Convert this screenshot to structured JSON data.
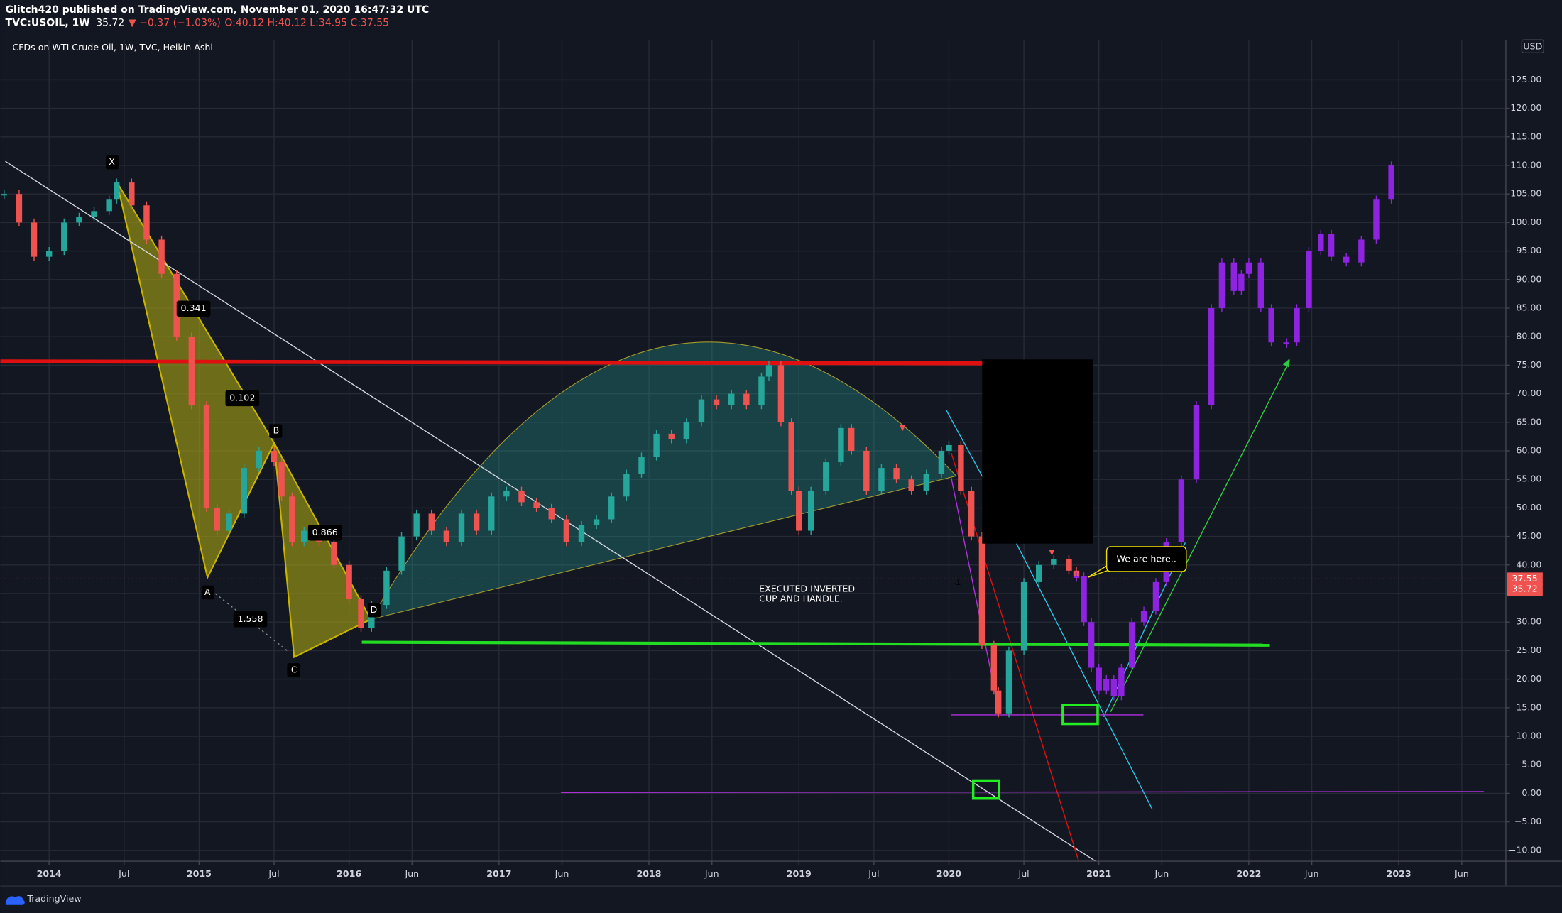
{
  "header": {
    "publisher": "Glitch420 published on TradingView.com, November 01, 2020 16:47:32 UTC",
    "symbol": "TVC:USOIL, 1W",
    "last": "35.72",
    "change": "▼ −0.37 (−1.03%)",
    "ohlc": "O:40.12 H:40.12 L:34.95 C:37.55"
  },
  "footer": {
    "brand": "TradingView"
  },
  "chart_data": {
    "type": "candlestick",
    "title": "CFDs on WTI Crude Oil, 1W, TVC, Heikin Ashi",
    "currency": "USD",
    "xlim": [
      2013.675,
      2023.714
    ],
    "ylim": [
      -11.9,
      132
    ],
    "xticks": [
      2014,
      {
        "value": 2014.5,
        "label": "Jul"
      },
      2015,
      {
        "value": 2015.5,
        "label": "Jul"
      },
      2016,
      {
        "value": 2016.42,
        "label": "Jun"
      },
      2017,
      {
        "value": 2017.42,
        "label": "Jun"
      },
      2018,
      {
        "value": 2018.42,
        "label": "Jun"
      },
      2019,
      {
        "value": 2019.5,
        "label": "Jul"
      },
      2020,
      {
        "value": 2020.5,
        "label": "Jul"
      },
      2021,
      {
        "value": 2021.42,
        "label": "Jun"
      },
      2022,
      {
        "value": 2022.42,
        "label": "Jun"
      },
      2023,
      {
        "value": 2023.42,
        "label": "Jun"
      }
    ],
    "yticks": [
      {
        "value": -10,
        "label": "−10.00"
      },
      {
        "value": -5,
        "label": "−5.00"
      },
      {
        "value": 0,
        "label": "0.00"
      },
      {
        "value": 5,
        "label": "5.00"
      },
      {
        "value": 10,
        "label": "10.00"
      },
      {
        "value": 15,
        "label": "15.00"
      },
      {
        "value": 20,
        "label": "20.00"
      },
      {
        "value": 25,
        "label": "25.00"
      },
      {
        "value": 30,
        "label": "30.00"
      },
      {
        "value": 35,
        "label": "35.00"
      },
      {
        "value": 40,
        "label": "40.00"
      },
      {
        "value": 45,
        "label": "45.00"
      },
      {
        "value": 50,
        "label": "50.00"
      },
      {
        "value": 55,
        "label": "55.00"
      },
      {
        "value": 60,
        "label": "60.00"
      },
      {
        "value": 65,
        "label": "65.00"
      },
      {
        "value": 70,
        "label": "70.00"
      },
      {
        "value": 75,
        "label": "75.00"
      },
      {
        "value": 80,
        "label": "80.00"
      },
      {
        "value": 85,
        "label": "85.00"
      },
      {
        "value": 90,
        "label": "90.00"
      },
      {
        "value": 95,
        "label": "95.00"
      },
      {
        "value": 100,
        "label": "100.00"
      },
      {
        "value": 105,
        "label": "105.00"
      },
      {
        "value": 110,
        "label": "110.00"
      },
      {
        "value": 115,
        "label": "115.00"
      },
      {
        "value": 120,
        "label": "120.00"
      },
      {
        "value": 125,
        "label": "125.00"
      }
    ],
    "grid": true,
    "series": [
      {
        "name": "WTI",
        "up_color": "#26a69a",
        "down_color": "#ef5350",
        "x": [
          2013.7,
          2013.8,
          2013.9,
          2014.0,
          2014.1,
          2014.2,
          2014.3,
          2014.4,
          2014.45,
          2014.55,
          2014.65,
          2014.75,
          2014.85,
          2014.95,
          2015.05,
          2015.12,
          2015.2,
          2015.3,
          2015.4,
          2015.5,
          2015.55,
          2015.62,
          2015.7,
          2015.8,
          2015.9,
          2016.0,
          2016.08,
          2016.15,
          2016.25,
          2016.35,
          2016.45,
          2016.55,
          2016.65,
          2016.75,
          2016.85,
          2016.95,
          2017.05,
          2017.15,
          2017.25,
          2017.35,
          2017.45,
          2017.55,
          2017.65,
          2017.75,
          2017.85,
          2017.95,
          2018.05,
          2018.15,
          2018.25,
          2018.35,
          2018.45,
          2018.55,
          2018.65,
          2018.75,
          2018.8,
          2018.88,
          2018.95,
          2019.0,
          2019.08,
          2019.18,
          2019.28,
          2019.35,
          2019.45,
          2019.55,
          2019.65,
          2019.75,
          2019.85,
          2019.95,
          2020.0,
          2020.08,
          2020.15,
          2020.22,
          2020.3,
          2020.33,
          2020.4,
          2020.5,
          2020.6,
          2020.7,
          2020.8,
          2020.85
        ],
        "values": [
          105,
          100,
          94,
          95,
          100,
          101,
          102,
          104,
          107,
          103,
          97,
          91,
          80,
          68,
          50,
          46,
          49,
          57,
          60,
          58,
          52,
          44,
          46,
          44,
          40,
          34,
          29,
          33,
          39,
          45,
          49,
          46,
          44,
          49,
          46,
          52,
          53,
          51,
          50,
          48,
          44,
          47,
          48,
          52,
          56,
          59,
          63,
          62,
          65,
          69,
          68,
          70,
          68,
          73,
          75,
          65,
          53,
          46,
          53,
          58,
          64,
          60,
          53,
          57,
          55,
          53,
          56,
          60,
          61,
          53,
          45,
          26,
          18,
          14,
          25,
          37,
          40,
          41,
          39,
          38
        ]
      },
      {
        "name": "Projection",
        "color": "#8e24e0",
        "x": [
          2020.85,
          2020.9,
          2020.95,
          2021.0,
          2021.05,
          2021.1,
          2021.15,
          2021.22,
          2021.3,
          2021.38,
          2021.45,
          2021.55,
          2021.65,
          2021.75,
          2021.82,
          2021.9,
          2021.95,
          2022.0,
          2022.08,
          2022.15,
          2022.25,
          2022.32,
          2022.4,
          2022.48,
          2022.55,
          2022.65,
          2022.75,
          2022.85,
          2022.95
        ],
        "values": [
          38,
          30,
          22,
          18,
          20,
          17,
          22,
          30,
          32,
          37,
          44,
          55,
          68,
          85,
          93,
          88,
          91,
          93,
          85,
          79,
          79,
          85,
          95,
          98,
          94,
          93,
          97,
          104,
          110
        ]
      }
    ],
    "price_labels": [
      {
        "value": 37.55,
        "color": "#ef5350"
      },
      {
        "value": 35.72,
        "color": "#ef5350"
      }
    ]
  },
  "annotations": {
    "x": "X",
    "a": "A",
    "b": "B",
    "c": "C",
    "d": "D",
    "r1": "0.341",
    "r2": "0.102",
    "r3": "0.866",
    "r4": "1.558",
    "pattern_line1": "EXECUTED INVERTED",
    "pattern_line2": "CUP AND HANDLE.",
    "callout": "We are here.."
  }
}
